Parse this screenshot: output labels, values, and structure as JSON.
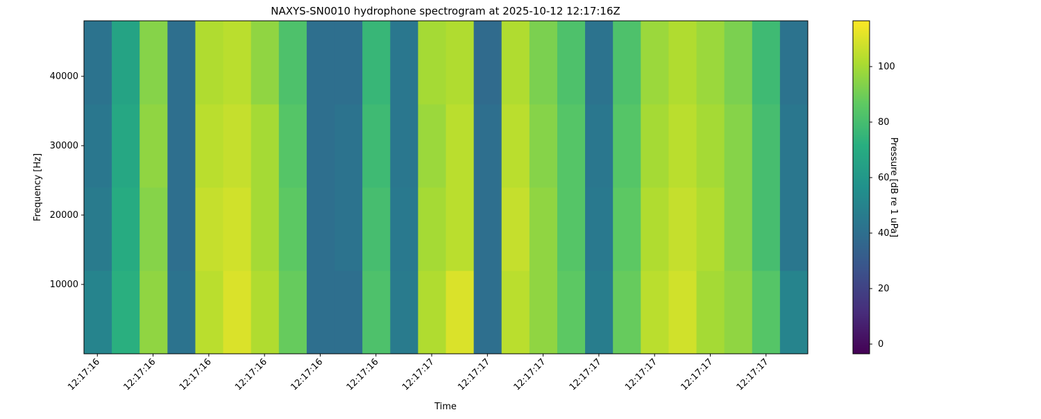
{
  "chart_data": {
    "type": "heatmap",
    "title": "NAXYS-SN0010 hydrophone spectrogram at 2025-10-12 12:17:16Z",
    "xlabel": "Time",
    "ylabel": "Frequency [Hz]",
    "colorbar_label": "Pressure [dB re 1 uPa]",
    "colormap": "viridis",
    "xlim": [
      16.376,
      17.675
    ],
    "xticks": [
      {
        "value": 16.4,
        "label": "12:17:16"
      },
      {
        "value": 16.5,
        "label": "12:17:16"
      },
      {
        "value": 16.6,
        "label": "12:17:16"
      },
      {
        "value": 16.7,
        "label": "12:17:16"
      },
      {
        "value": 16.8,
        "label": "12:17:16"
      },
      {
        "value": 16.9,
        "label": "12:17:16"
      },
      {
        "value": 17.0,
        "label": "12:17:17"
      },
      {
        "value": 17.1,
        "label": "12:17:17"
      },
      {
        "value": 17.2,
        "label": "12:17:17"
      },
      {
        "value": 17.3,
        "label": "12:17:17"
      },
      {
        "value": 17.4,
        "label": "12:17:17"
      },
      {
        "value": 17.5,
        "label": "12:17:17"
      },
      {
        "value": 17.6,
        "label": "12:17:17"
      }
    ],
    "ylim": [
      0,
      48000
    ],
    "yticks": [
      10000,
      20000,
      30000,
      40000
    ],
    "clim": [
      -3.5,
      116.5
    ],
    "cticks": [
      0,
      20,
      40,
      60,
      80,
      100
    ],
    "z": [
      [
        50,
        72,
        96,
        42,
        104,
        110,
        102,
        88,
        40,
        40,
        82,
        46,
        102,
        110,
        40,
        104,
        96,
        86,
        47,
        88,
        104,
        108,
        100,
        96,
        84,
        50
      ],
      [
        46,
        70,
        94,
        40,
        106,
        108,
        100,
        86,
        40,
        42,
        80,
        45,
        100,
        104,
        40,
        106,
        96,
        84,
        45,
        86,
        102,
        106,
        102,
        94,
        80,
        44
      ],
      [
        44,
        68,
        96,
        40,
        104,
        106,
        100,
        84,
        40,
        42,
        78,
        44,
        98,
        104,
        40,
        104,
        94,
        84,
        44,
        84,
        100,
        104,
        100,
        94,
        80,
        44
      ],
      [
        42,
        66,
        94,
        40,
        102,
        104,
        96,
        82,
        40,
        40,
        76,
        44,
        100,
        102,
        38,
        102,
        92,
        82,
        42,
        82,
        98,
        102,
        98,
        92,
        78,
        42
      ]
    ]
  }
}
